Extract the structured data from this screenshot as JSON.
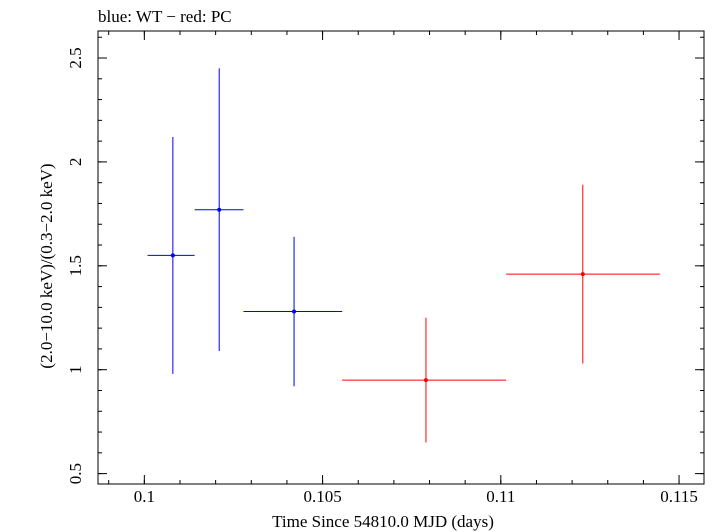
{
  "chart_data": {
    "type": "scatter",
    "title": "blue: WT − red: PC",
    "xlabel": "Time Since 54810.0 MJD (days)",
    "ylabel": "(2.0−10.0 keV)/(0.3−2.0 keV)",
    "xlim": [
      0.0987,
      0.1157
    ],
    "ylim": [
      0.45,
      2.63
    ],
    "x_ticks": [
      {
        "value": 0.1,
        "label": "0.1"
      },
      {
        "value": 0.105,
        "label": "0.105"
      },
      {
        "value": 0.11,
        "label": "0.11"
      },
      {
        "value": 0.115,
        "label": "0.115"
      }
    ],
    "x_minor_step": 0.001,
    "y_ticks": [
      {
        "value": 0.5,
        "label": "0.5"
      },
      {
        "value": 1,
        "label": "1"
      },
      {
        "value": 1.5,
        "label": "1.5"
      },
      {
        "value": 2,
        "label": "2"
      },
      {
        "value": 2.5,
        "label": "2.5"
      }
    ],
    "y_minor_step": 0.1,
    "grid": false,
    "series": [
      {
        "name": "WT",
        "color": "#0000ff",
        "points": [
          {
            "x": 0.1008,
            "y": 1.55,
            "xlo": 0.10009,
            "xhi": 0.10141,
            "ylo": 0.98,
            "yhi": 2.12
          },
          {
            "x": 0.1021,
            "y": 1.77,
            "xlo": 0.10141,
            "xhi": 0.10278,
            "ylo": 1.09,
            "yhi": 2.45
          },
          {
            "x": 0.1042,
            "y": 1.28,
            "xlo": 0.10278,
            "xhi": 0.10555,
            "ylo": 0.92,
            "yhi": 1.64
          }
        ]
      },
      {
        "name": "PC",
        "color": "#ff0000",
        "points": [
          {
            "x": 0.1079,
            "y": 0.95,
            "xlo": 0.10555,
            "xhi": 0.11015,
            "ylo": 0.65,
            "yhi": 1.25
          },
          {
            "x": 0.1123,
            "y": 1.46,
            "xlo": 0.11015,
            "xhi": 0.11446,
            "ylo": 1.03,
            "yhi": 1.89
          }
        ]
      }
    ]
  }
}
